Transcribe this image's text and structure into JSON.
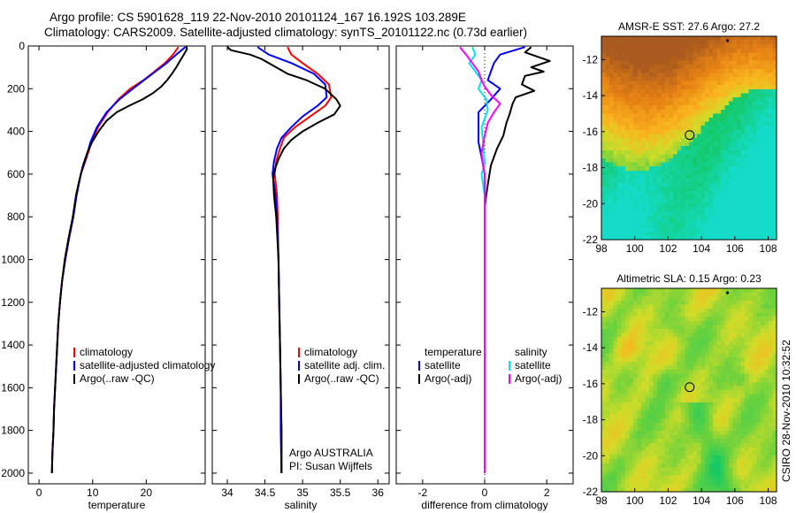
{
  "figure": {
    "title_line1": "Argo profile: CS 5901628_119 22-Nov-2010 20101124_167 16.192S 103.289E",
    "title_line2": "Climatology: CARS2009. Satellite-adjusted climatology: synTS_20101122.nc (0.73d earlier)",
    "side_label": "CSIRO 28-Nov-2010 10:32:52"
  },
  "colors": {
    "climatology": "#ff0000",
    "satellite": "#0000ff",
    "argo": "#000000",
    "satellite_salinity_diff": "#00e5ee",
    "argo_salinity_diff": "#ff00ff"
  },
  "chart_data": [
    {
      "type": "line",
      "name": "temperature-profile",
      "xlabel": "temperature",
      "xlim": [
        -2,
        31
      ],
      "ylim": [
        0,
        2050
      ],
      "y_inverted": true,
      "xticks": [
        0,
        10,
        20
      ],
      "yticks": [
        0,
        200,
        400,
        600,
        800,
        1000,
        1200,
        1400,
        1600,
        1800,
        2000
      ],
      "legend": [
        "climatology",
        "satellite-adjusted climatology",
        "Argo(..raw -QC)"
      ],
      "series": [
        {
          "name": "climatology",
          "color": "#ff0000",
          "points": [
            [
              26.0,
              5
            ],
            [
              25.0,
              40
            ],
            [
              23.5,
              80
            ],
            [
              21.5,
              120
            ],
            [
              19.5,
              160
            ],
            [
              17.0,
              200
            ],
            [
              14.8,
              250
            ],
            [
              12.8,
              310
            ],
            [
              11.0,
              380
            ],
            [
              9.8,
              450
            ],
            [
              8.9,
              520
            ],
            [
              7.8,
              600
            ],
            [
              7.0,
              700
            ],
            [
              6.4,
              800
            ],
            [
              5.6,
              900
            ],
            [
              4.9,
              1000
            ],
            [
              4.3,
              1100
            ],
            [
              3.9,
              1200
            ],
            [
              3.6,
              1300
            ],
            [
              3.4,
              1400
            ],
            [
              3.2,
              1500
            ],
            [
              3.0,
              1600
            ],
            [
              2.8,
              1700
            ],
            [
              2.7,
              1800
            ],
            [
              2.5,
              1900
            ],
            [
              2.4,
              2000
            ]
          ]
        },
        {
          "name": "satellite-adjusted climatology",
          "color": "#0000ff",
          "points": [
            [
              27.3,
              5
            ],
            [
              25.6,
              40
            ],
            [
              23.8,
              80
            ],
            [
              21.7,
              120
            ],
            [
              19.6,
              160
            ],
            [
              17.5,
              200
            ],
            [
              15.0,
              250
            ],
            [
              12.6,
              310
            ],
            [
              10.8,
              380
            ],
            [
              9.6,
              450
            ],
            [
              8.8,
              520
            ],
            [
              7.8,
              600
            ],
            [
              7.0,
              700
            ],
            [
              6.4,
              800
            ],
            [
              5.6,
              900
            ],
            [
              4.9,
              1000
            ],
            [
              4.3,
              1100
            ],
            [
              3.9,
              1200
            ],
            [
              3.6,
              1300
            ],
            [
              3.4,
              1400
            ],
            [
              3.2,
              1500
            ],
            [
              3.0,
              1600
            ],
            [
              2.8,
              1700
            ],
            [
              2.7,
              1800
            ],
            [
              2.5,
              1900
            ],
            [
              2.4,
              2000
            ]
          ]
        },
        {
          "name": "Argo(..raw -QC)",
          "color": "#000000",
          "points": [
            [
              27.5,
              0
            ],
            [
              27.6,
              15
            ],
            [
              27.0,
              40
            ],
            [
              26.3,
              70
            ],
            [
              25.6,
              100
            ],
            [
              24.8,
              130
            ],
            [
              23.9,
              160
            ],
            [
              22.8,
              190
            ],
            [
              21.3,
              220
            ],
            [
              19.3,
              250
            ],
            [
              16.8,
              280
            ],
            [
              14.5,
              310
            ],
            [
              12.6,
              350
            ],
            [
              11.1,
              400
            ],
            [
              9.9,
              450
            ],
            [
              9.0,
              500
            ],
            [
              8.2,
              560
            ],
            [
              7.5,
              630
            ],
            [
              6.9,
              700
            ],
            [
              6.3,
              800
            ],
            [
              5.5,
              900
            ],
            [
              4.8,
              1000
            ],
            [
              4.3,
              1100
            ],
            [
              3.9,
              1200
            ],
            [
              3.6,
              1300
            ],
            [
              3.4,
              1400
            ],
            [
              3.2,
              1500
            ],
            [
              3.0,
              1600
            ],
            [
              2.8,
              1700
            ],
            [
              2.7,
              1800
            ],
            [
              2.5,
              1900
            ],
            [
              2.4,
              2000
            ]
          ]
        }
      ]
    },
    {
      "type": "line",
      "name": "salinity-profile",
      "xlabel": "salinity",
      "xlim": [
        33.8,
        36.15
      ],
      "ylim": [
        0,
        2050
      ],
      "y_inverted": true,
      "xticks": [
        34,
        34.5,
        35,
        35.5,
        36
      ],
      "legend": [
        "climatology",
        "satellite adj. clim.",
        "Argo(..raw -QC)"
      ],
      "annotations": [
        "Argo AUSTRALIA",
        "PI: Susan Wijffels"
      ],
      "series": [
        {
          "name": "climatology",
          "color": "#ff0000",
          "points": [
            [
              34.8,
              5
            ],
            [
              34.85,
              40
            ],
            [
              35.0,
              80
            ],
            [
              35.2,
              130
            ],
            [
              35.35,
              180
            ],
            [
              35.38,
              240
            ],
            [
              35.3,
              280
            ],
            [
              35.1,
              330
            ],
            [
              34.9,
              380
            ],
            [
              34.75,
              430
            ],
            [
              34.7,
              480
            ],
            [
              34.65,
              540
            ],
            [
              34.63,
              600
            ],
            [
              34.66,
              700
            ],
            [
              34.67,
              800
            ],
            [
              34.68,
              1000
            ],
            [
              34.69,
              1200
            ],
            [
              34.7,
              1400
            ],
            [
              34.71,
              1600
            ],
            [
              34.72,
              1800
            ],
            [
              34.72,
              2000
            ]
          ]
        },
        {
          "name": "satellite adj. clim.",
          "color": "#0000ff",
          "points": [
            [
              34.4,
              5
            ],
            [
              34.55,
              40
            ],
            [
              34.85,
              80
            ],
            [
              35.15,
              130
            ],
            [
              35.3,
              180
            ],
            [
              35.32,
              240
            ],
            [
              35.2,
              280
            ],
            [
              35.0,
              330
            ],
            [
              34.85,
              380
            ],
            [
              34.72,
              430
            ],
            [
              34.66,
              480
            ],
            [
              34.62,
              540
            ],
            [
              34.6,
              600
            ],
            [
              34.64,
              700
            ],
            [
              34.66,
              800
            ],
            [
              34.68,
              1000
            ],
            [
              34.69,
              1200
            ],
            [
              34.7,
              1400
            ],
            [
              34.71,
              1600
            ],
            [
              34.71,
              1800
            ],
            [
              34.72,
              2000
            ]
          ]
        },
        {
          "name": "Argo(..raw -QC)",
          "color": "#000000",
          "points": [
            [
              34.0,
              5
            ],
            [
              34.05,
              20
            ],
            [
              34.3,
              40
            ],
            [
              34.45,
              60
            ],
            [
              34.6,
              90
            ],
            [
              34.8,
              130
            ],
            [
              35.05,
              160
            ],
            [
              35.3,
              200
            ],
            [
              35.45,
              250
            ],
            [
              35.5,
              280
            ],
            [
              35.42,
              320
            ],
            [
              35.2,
              360
            ],
            [
              35.0,
              400
            ],
            [
              34.85,
              440
            ],
            [
              34.75,
              480
            ],
            [
              34.68,
              530
            ],
            [
              34.63,
              580
            ],
            [
              34.61,
              620
            ],
            [
              34.62,
              700
            ],
            [
              34.65,
              800
            ],
            [
              34.68,
              1000
            ],
            [
              34.69,
              1200
            ],
            [
              34.7,
              1400
            ],
            [
              34.71,
              1600
            ],
            [
              34.72,
              1800
            ],
            [
              34.72,
              2000
            ]
          ]
        }
      ]
    },
    {
      "type": "line",
      "name": "difference-profile",
      "xlabel": "difference from climatology",
      "xlim": [
        -2.85,
        2.85
      ],
      "ylim": [
        0,
        2050
      ],
      "y_inverted": true,
      "xticks": [
        -2,
        0,
        2
      ],
      "legend_left_heading": "temperature",
      "legend_right_heading": "salinity",
      "legend_left": [
        "satellite",
        "Argo(-adj)"
      ],
      "legend_right": [
        "satellite",
        "Argo(-adj)"
      ],
      "series": [
        {
          "name": "temperature satellite",
          "color": "#0000ff",
          "points": [
            [
              1.3,
              5
            ],
            [
              0.5,
              40
            ],
            [
              0.3,
              80
            ],
            [
              0.2,
              120
            ],
            [
              0.1,
              160
            ],
            [
              0.5,
              200
            ],
            [
              0.2,
              250
            ],
            [
              -0.2,
              310
            ],
            [
              -0.2,
              380
            ],
            [
              -0.2,
              450
            ],
            [
              -0.1,
              520
            ],
            [
              0,
              600
            ],
            [
              0,
              800
            ],
            [
              0,
              1000
            ],
            [
              0,
              1500
            ],
            [
              0,
              2000
            ]
          ]
        },
        {
          "name": "temperature Argo(-adj)",
          "color": "#000000",
          "points": [
            [
              1.5,
              5
            ],
            [
              1.3,
              30
            ],
            [
              1.7,
              50
            ],
            [
              2.1,
              70
            ],
            [
              1.5,
              100
            ],
            [
              1.9,
              120
            ],
            [
              1.3,
              140
            ],
            [
              1.2,
              180
            ],
            [
              1.6,
              210
            ],
            [
              1.0,
              240
            ],
            [
              0.9,
              270
            ],
            [
              0.8,
              320
            ],
            [
              0.7,
              360
            ],
            [
              0.6,
              420
            ],
            [
              0.4,
              480
            ],
            [
              0.2,
              560
            ],
            [
              0.1,
              650
            ],
            [
              0,
              750
            ],
            [
              0,
              1000
            ],
            [
              0,
              1500
            ],
            [
              0,
              2000
            ]
          ]
        },
        {
          "name": "salinity satellite",
          "color": "#00e5ee",
          "points": [
            [
              -0.4,
              5
            ],
            [
              -0.3,
              40
            ],
            [
              -0.5,
              80
            ],
            [
              -0.3,
              120
            ],
            [
              -0.1,
              160
            ],
            [
              -0.2,
              200
            ],
            [
              0.05,
              250
            ],
            [
              0.1,
              300
            ],
            [
              0,
              340
            ],
            [
              -0.1,
              380
            ],
            [
              -0.05,
              450
            ],
            [
              0,
              550
            ],
            [
              -0.1,
              600
            ],
            [
              0,
              700
            ],
            [
              0,
              1000
            ],
            [
              0,
              1500
            ],
            [
              0,
              2000
            ]
          ]
        },
        {
          "name": "salinity Argo(-adj)",
          "color": "#ff00ff",
          "points": [
            [
              -0.8,
              5
            ],
            [
              -0.6,
              40
            ],
            [
              -0.4,
              80
            ],
            [
              -0.2,
              120
            ],
            [
              -0.1,
              160
            ],
            [
              0,
              190
            ],
            [
              0.2,
              230
            ],
            [
              0.5,
              270
            ],
            [
              0.3,
              310
            ],
            [
              0.1,
              360
            ],
            [
              0,
              420
            ],
            [
              -0.1,
              500
            ],
            [
              -0.05,
              560
            ],
            [
              0,
              600
            ],
            [
              0,
              800
            ],
            [
              0,
              1000
            ],
            [
              0,
              1500
            ],
            [
              0,
              2000
            ]
          ]
        }
      ]
    },
    {
      "type": "heatmap",
      "name": "sst-map",
      "title": "AMSR-E SST: 27.6 Argo: 27.2",
      "xlim": [
        98,
        108.5
      ],
      "ylim": [
        -22,
        -10.7
      ],
      "xticks": [
        98,
        100,
        102,
        104,
        106,
        108
      ],
      "yticks": [
        -12,
        -14,
        -16,
        -18,
        -20,
        -22
      ],
      "argo_location": [
        103.29,
        -16.19
      ]
    },
    {
      "type": "heatmap",
      "name": "sla-map",
      "title": "Altimetric SLA: 0.15 Argo: 0.23",
      "xlim": [
        98,
        108.5
      ],
      "ylim": [
        -22,
        -10.7
      ],
      "xticks": [
        98,
        100,
        102,
        104,
        106,
        108
      ],
      "yticks": [
        -12,
        -14,
        -16,
        -18,
        -20,
        -22
      ],
      "argo_location": [
        103.29,
        -16.19
      ]
    }
  ]
}
